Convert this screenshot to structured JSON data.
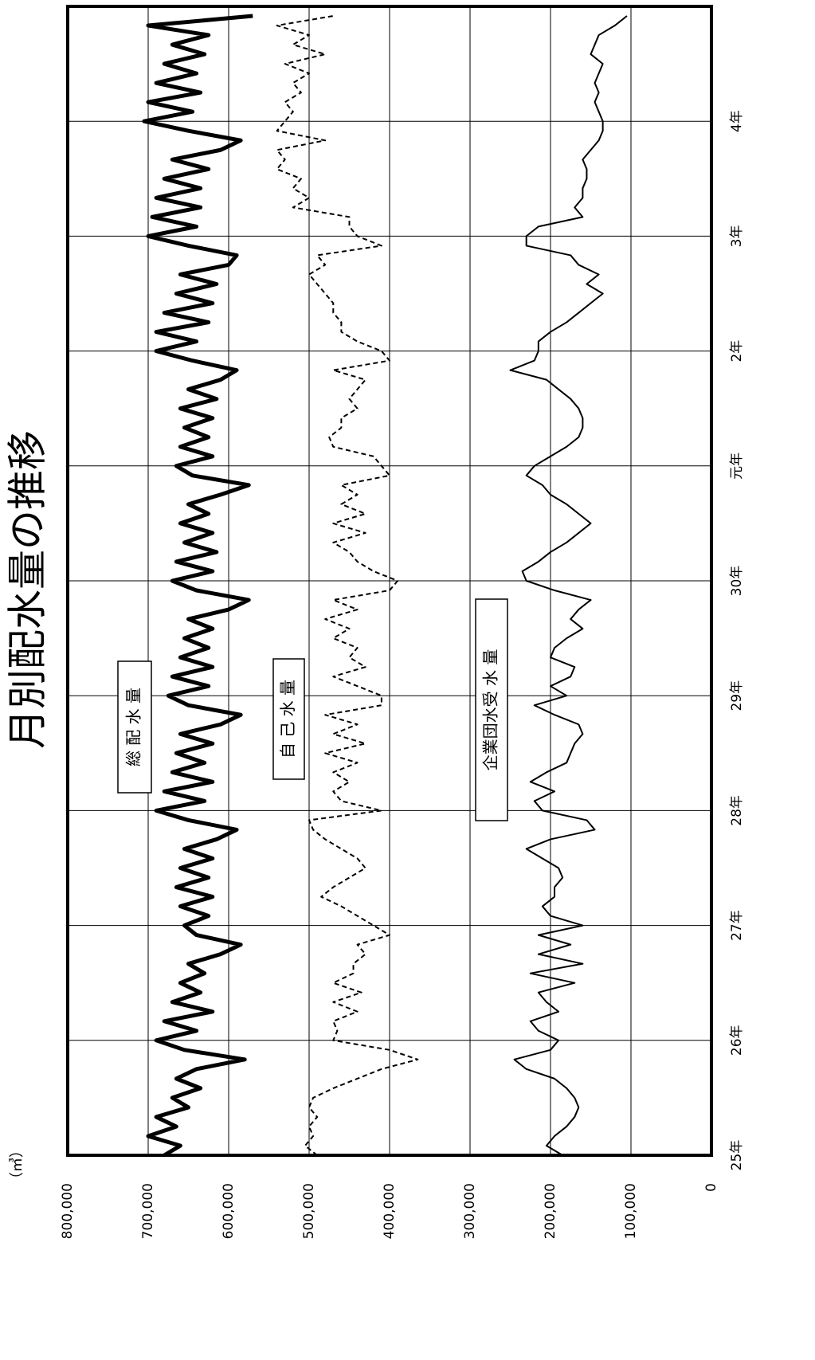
{
  "chart_data": {
    "type": "line",
    "title": "月別配水量の推移",
    "y_unit": "（㎥）",
    "xlim": [
      0,
      120
    ],
    "ylim": [
      0,
      800000
    ],
    "xticks": [
      {
        "value": 0,
        "label": "25年"
      },
      {
        "value": 12,
        "label": "26年"
      },
      {
        "value": 24,
        "label": "27年"
      },
      {
        "value": 36,
        "label": "28年"
      },
      {
        "value": 48,
        "label": "29年"
      },
      {
        "value": 60,
        "label": "30年"
      },
      {
        "value": 72,
        "label": "元年"
      },
      {
        "value": 84,
        "label": "2年"
      },
      {
        "value": 96,
        "label": "3年"
      },
      {
        "value": 108,
        "label": "4年"
      }
    ],
    "yticks": [
      0,
      {
        "value": 100000,
        "label": "100,000"
      },
      {
        "value": 200000,
        "label": "200,000"
      },
      {
        "value": 300000,
        "label": "300,000"
      },
      {
        "value": 400000,
        "label": "400,000"
      },
      {
        "value": 500000,
        "label": "500,000"
      },
      {
        "value": 600000,
        "label": "600,000"
      },
      {
        "value": 700000,
        "label": "700,000"
      },
      {
        "value": 800000,
        "label": "800,000"
      }
    ],
    "grid": true,
    "series": [
      {
        "name": "総 配 水 量",
        "color": "#000000",
        "linewidth": 5,
        "dashed": false,
        "values": [
          680000,
          660000,
          700000,
          665000,
          690000,
          650000,
          670000,
          635000,
          665000,
          640000,
          580000,
          655000,
          690000,
          640000,
          680000,
          620000,
          670000,
          635000,
          660000,
          630000,
          650000,
          610000,
          585000,
          640000,
          655000,
          625000,
          660000,
          620000,
          665000,
          625000,
          660000,
          620000,
          655000,
          615000,
          590000,
          650000,
          690000,
          630000,
          680000,
          620000,
          670000,
          630000,
          665000,
          620000,
          660000,
          610000,
          585000,
          650000,
          675000,
          625000,
          670000,
          620000,
          660000,
          625000,
          655000,
          620000,
          650000,
          600000,
          575000,
          640000,
          670000,
          620000,
          665000,
          615000,
          655000,
          620000,
          660000,
          625000,
          650000,
          610000,
          575000,
          645000,
          665000,
          620000,
          660000,
          625000,
          655000,
          620000,
          660000,
          615000,
          650000,
          610000,
          590000,
          645000,
          690000,
          640000,
          690000,
          625000,
          680000,
          620000,
          665000,
          615000,
          660000,
          600000,
          590000,
          650000,
          700000,
          640000,
          695000,
          635000,
          690000,
          635000,
          680000,
          625000,
          670000,
          610000,
          585000,
          650000,
          705000,
          645000,
          700000,
          635000,
          690000,
          640000,
          680000,
          630000,
          670000,
          625000,
          700000,
          570000
        ]
      },
      {
        "name": "自 己 水 量",
        "color": "#000000",
        "linewidth": 2,
        "dashed": true,
        "values": [
          490000,
          505000,
          495000,
          500000,
          490000,
          500000,
          495000,
          470000,
          440000,
          410000,
          365000,
          400000,
          470000,
          465000,
          470000,
          440000,
          470000,
          435000,
          470000,
          445000,
          445000,
          430000,
          440000,
          400000,
          420000,
          440000,
          460000,
          485000,
          470000,
          450000,
          430000,
          440000,
          460000,
          480000,
          495000,
          500000,
          410000,
          460000,
          470000,
          450000,
          470000,
          440000,
          480000,
          430000,
          470000,
          440000,
          480000,
          410000,
          410000,
          440000,
          470000,
          430000,
          450000,
          440000,
          470000,
          450000,
          480000,
          440000,
          470000,
          400000,
          390000,
          420000,
          440000,
          450000,
          470000,
          430000,
          470000,
          430000,
          460000,
          440000,
          460000,
          400000,
          410000,
          420000,
          470000,
          475000,
          460000,
          460000,
          440000,
          450000,
          440000,
          430000,
          470000,
          400000,
          410000,
          440000,
          460000,
          460000,
          470000,
          470000,
          480000,
          490000,
          500000,
          480000,
          490000,
          410000,
          440000,
          450000,
          450000,
          520000,
          500000,
          520000,
          510000,
          540000,
          530000,
          540000,
          480000,
          540000,
          530000,
          520000,
          530000,
          510000,
          520000,
          500000,
          530000,
          480000,
          520000,
          500000,
          540000,
          470000
        ]
      },
      {
        "name": "企業団水受 水 量",
        "color": "#000000",
        "linewidth": 2,
        "dashed": false,
        "values": [
          185000,
          205000,
          195000,
          180000,
          170000,
          165000,
          170000,
          180000,
          195000,
          230000,
          245000,
          200000,
          190000,
          215000,
          225000,
          190000,
          205000,
          215000,
          170000,
          225000,
          160000,
          215000,
          175000,
          215000,
          160000,
          200000,
          210000,
          195000,
          195000,
          185000,
          190000,
          210000,
          230000,
          200000,
          145000,
          155000,
          210000,
          220000,
          195000,
          225000,
          205000,
          180000,
          175000,
          170000,
          160000,
          165000,
          195000,
          220000,
          180000,
          200000,
          175000,
          170000,
          200000,
          195000,
          180000,
          160000,
          175000,
          165000,
          150000,
          195000,
          230000,
          235000,
          215000,
          200000,
          180000,
          165000,
          150000,
          165000,
          180000,
          200000,
          210000,
          230000,
          220000,
          200000,
          180000,
          165000,
          160000,
          160000,
          165000,
          175000,
          190000,
          205000,
          250000,
          220000,
          215000,
          215000,
          200000,
          180000,
          165000,
          150000,
          135000,
          155000,
          140000,
          165000,
          175000,
          230000,
          230000,
          215000,
          160000,
          170000,
          160000,
          160000,
          155000,
          155000,
          160000,
          150000,
          140000,
          135000,
          135000,
          140000,
          145000,
          140000,
          145000,
          140000,
          135000,
          150000,
          145000,
          140000,
          120000,
          105000
        ]
      }
    ]
  }
}
